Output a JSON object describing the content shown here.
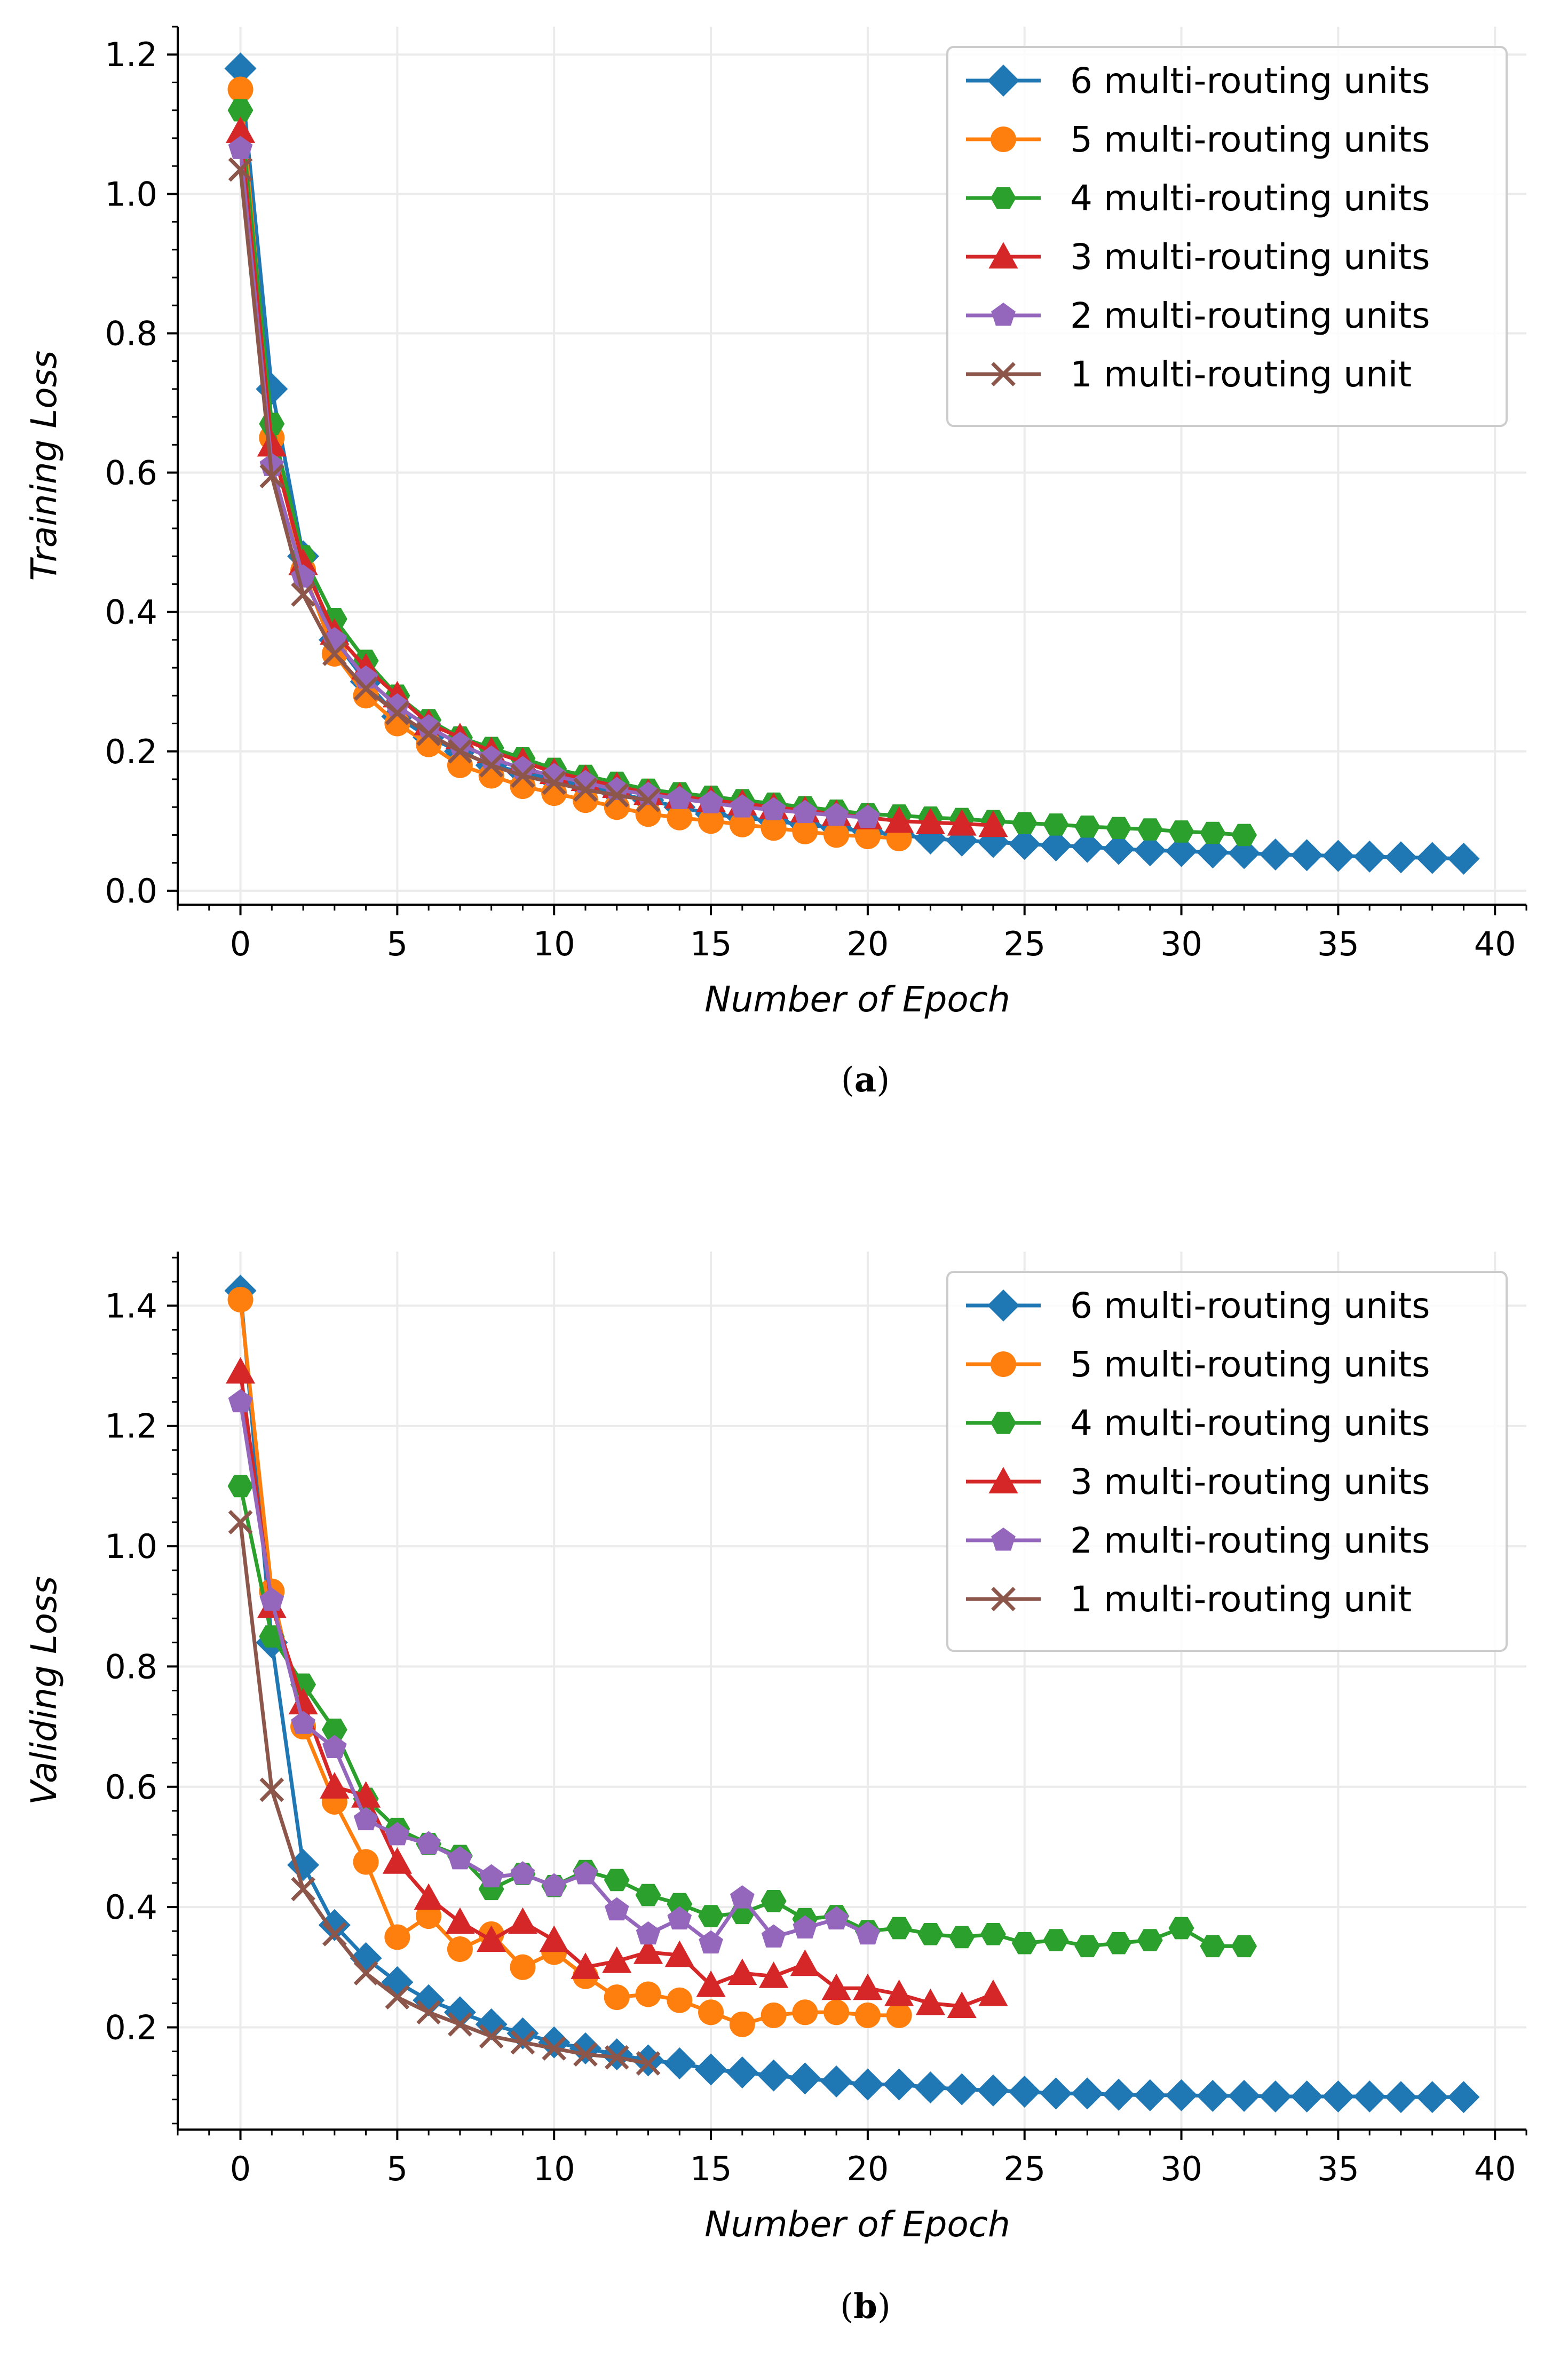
{
  "colors": {
    "s6": "#1f77b4",
    "s5": "#ff7f0e",
    "s4": "#2ca02c",
    "s3": "#d62728",
    "s2": "#9467bd",
    "s1": "#8c564b",
    "grid": "#ebebeb"
  },
  "chart_data": [
    {
      "type": "line",
      "caption": {
        "open": "(",
        "letter": "a",
        "close": ")"
      },
      "xlabel": "Number of Epoch",
      "ylabel": "Training Loss",
      "xlim": [
        -2,
        41
      ],
      "ylim": [
        -0.02,
        1.24
      ],
      "xticks": [
        0,
        5,
        10,
        15,
        20,
        25,
        30,
        35,
        40
      ],
      "yticks": [
        0.0,
        0.2,
        0.4,
        0.6,
        0.8,
        1.0,
        1.2
      ],
      "ytick_labels": [
        "0.0",
        "0.2",
        "0.4",
        "0.6",
        "0.8",
        "1.0",
        "1.2"
      ],
      "grid": true,
      "legend_position": "top-right",
      "series": [
        {
          "name": "6 multi-routing units",
          "color_key": "s6",
          "marker": "diamond",
          "values": [
            1.18,
            0.72,
            0.48,
            0.36,
            0.3,
            0.25,
            0.22,
            0.2,
            0.18,
            0.17,
            0.16,
            0.15,
            0.14,
            0.13,
            0.12,
            0.11,
            0.105,
            0.1,
            0.095,
            0.09,
            0.085,
            0.08,
            0.075,
            0.072,
            0.07,
            0.067,
            0.065,
            0.063,
            0.06,
            0.058,
            0.057,
            0.055,
            0.054,
            0.052,
            0.051,
            0.05,
            0.049,
            0.048,
            0.047,
            0.046
          ]
        },
        {
          "name": "5 multi-routing units",
          "color_key": "s5",
          "marker": "circle",
          "values": [
            1.15,
            0.65,
            0.46,
            0.34,
            0.28,
            0.24,
            0.21,
            0.18,
            0.165,
            0.15,
            0.14,
            0.13,
            0.12,
            0.11,
            0.105,
            0.1,
            0.095,
            0.09,
            0.085,
            0.08,
            0.078,
            0.075
          ]
        },
        {
          "name": "4 multi-routing units",
          "color_key": "s4",
          "marker": "hexagon",
          "values": [
            1.12,
            0.67,
            0.48,
            0.39,
            0.33,
            0.28,
            0.245,
            0.22,
            0.205,
            0.19,
            0.175,
            0.165,
            0.155,
            0.145,
            0.14,
            0.135,
            0.13,
            0.125,
            0.12,
            0.115,
            0.11,
            0.108,
            0.105,
            0.103,
            0.1,
            0.097,
            0.095,
            0.092,
            0.09,
            0.088,
            0.085,
            0.083,
            0.08
          ]
        },
        {
          "name": "3 multi-routing units",
          "color_key": "s3",
          "marker": "triangle",
          "values": [
            1.09,
            0.64,
            0.47,
            0.37,
            0.32,
            0.28,
            0.24,
            0.22,
            0.2,
            0.185,
            0.17,
            0.16,
            0.15,
            0.14,
            0.135,
            0.13,
            0.125,
            0.12,
            0.115,
            0.11,
            0.105,
            0.1,
            0.098,
            0.096,
            0.094
          ]
        },
        {
          "name": "2 multi-routing units",
          "color_key": "s2",
          "marker": "pentagon",
          "values": [
            1.065,
            0.61,
            0.45,
            0.36,
            0.305,
            0.265,
            0.235,
            0.21,
            0.19,
            0.175,
            0.165,
            0.155,
            0.145,
            0.138,
            0.132,
            0.126,
            0.12,
            0.116,
            0.112,
            0.108,
            0.105
          ]
        },
        {
          "name": "1 multi-routing unit",
          "color_key": "s1",
          "marker": "x",
          "values": [
            1.035,
            0.595,
            0.425,
            0.34,
            0.29,
            0.255,
            0.225,
            0.2,
            0.18,
            0.165,
            0.155,
            0.145,
            0.137,
            0.13
          ]
        }
      ]
    },
    {
      "type": "line",
      "caption": {
        "open": "(",
        "letter": "b",
        "close": ")"
      },
      "xlabel": "Number of Epoch",
      "ylabel": "Validing Loss",
      "xlim": [
        -2,
        41
      ],
      "ylim": [
        0.03,
        1.49
      ],
      "xticks": [
        0,
        5,
        10,
        15,
        20,
        25,
        30,
        35,
        40
      ],
      "yticks": [
        0.2,
        0.4,
        0.6,
        0.8,
        1.0,
        1.2,
        1.4
      ],
      "ytick_labels": [
        "0.2",
        "0.4",
        "0.6",
        "0.8",
        "1.0",
        "1.2",
        "1.4"
      ],
      "grid": true,
      "legend_position": "top-right",
      "series": [
        {
          "name": "6 multi-routing units",
          "color_key": "s6",
          "marker": "diamond",
          "values": [
            1.425,
            0.84,
            0.47,
            0.37,
            0.315,
            0.275,
            0.245,
            0.225,
            0.205,
            0.19,
            0.175,
            0.165,
            0.155,
            0.145,
            0.14,
            0.13,
            0.125,
            0.12,
            0.115,
            0.11,
            0.105,
            0.105,
            0.1,
            0.097,
            0.095,
            0.093,
            0.09,
            0.09,
            0.088,
            0.087,
            0.087,
            0.086,
            0.086,
            0.085,
            0.085,
            0.085,
            0.085,
            0.084,
            0.084,
            0.084
          ]
        },
        {
          "name": "5 multi-routing units",
          "color_key": "s5",
          "marker": "circle",
          "values": [
            1.41,
            0.925,
            0.7,
            0.575,
            0.475,
            0.35,
            0.385,
            0.33,
            0.355,
            0.3,
            0.325,
            0.285,
            0.25,
            0.255,
            0.245,
            0.225,
            0.205,
            0.22,
            0.225,
            0.225,
            0.22,
            0.22
          ]
        },
        {
          "name": "4 multi-routing units",
          "color_key": "s4",
          "marker": "hexagon",
          "values": [
            1.1,
            0.85,
            0.77,
            0.695,
            0.58,
            0.53,
            0.505,
            0.485,
            0.43,
            0.455,
            0.435,
            0.46,
            0.445,
            0.42,
            0.405,
            0.385,
            0.39,
            0.41,
            0.38,
            0.385,
            0.36,
            0.365,
            0.355,
            0.35,
            0.355,
            0.34,
            0.345,
            0.335,
            0.34,
            0.345,
            0.365,
            0.335,
            0.335
          ]
        },
        {
          "name": "3 multi-routing units",
          "color_key": "s3",
          "marker": "triangle",
          "values": [
            1.29,
            0.9,
            0.74,
            0.6,
            0.585,
            0.475,
            0.415,
            0.375,
            0.345,
            0.375,
            0.345,
            0.3,
            0.31,
            0.325,
            0.32,
            0.27,
            0.29,
            0.285,
            0.305,
            0.265,
            0.265,
            0.255,
            0.24,
            0.235,
            0.255
          ]
        },
        {
          "name": "2 multi-routing units",
          "color_key": "s2",
          "marker": "pentagon",
          "values": [
            1.24,
            0.91,
            0.705,
            0.665,
            0.545,
            0.52,
            0.505,
            0.48,
            0.45,
            0.455,
            0.435,
            0.455,
            0.395,
            0.355,
            0.38,
            0.34,
            0.415,
            0.35,
            0.365,
            0.38,
            0.355
          ]
        },
        {
          "name": "1 multi-routing unit",
          "color_key": "s1",
          "marker": "x",
          "values": [
            1.04,
            0.595,
            0.43,
            0.355,
            0.29,
            0.25,
            0.225,
            0.205,
            0.185,
            0.175,
            0.165,
            0.155,
            0.15,
            0.14
          ]
        }
      ]
    }
  ]
}
